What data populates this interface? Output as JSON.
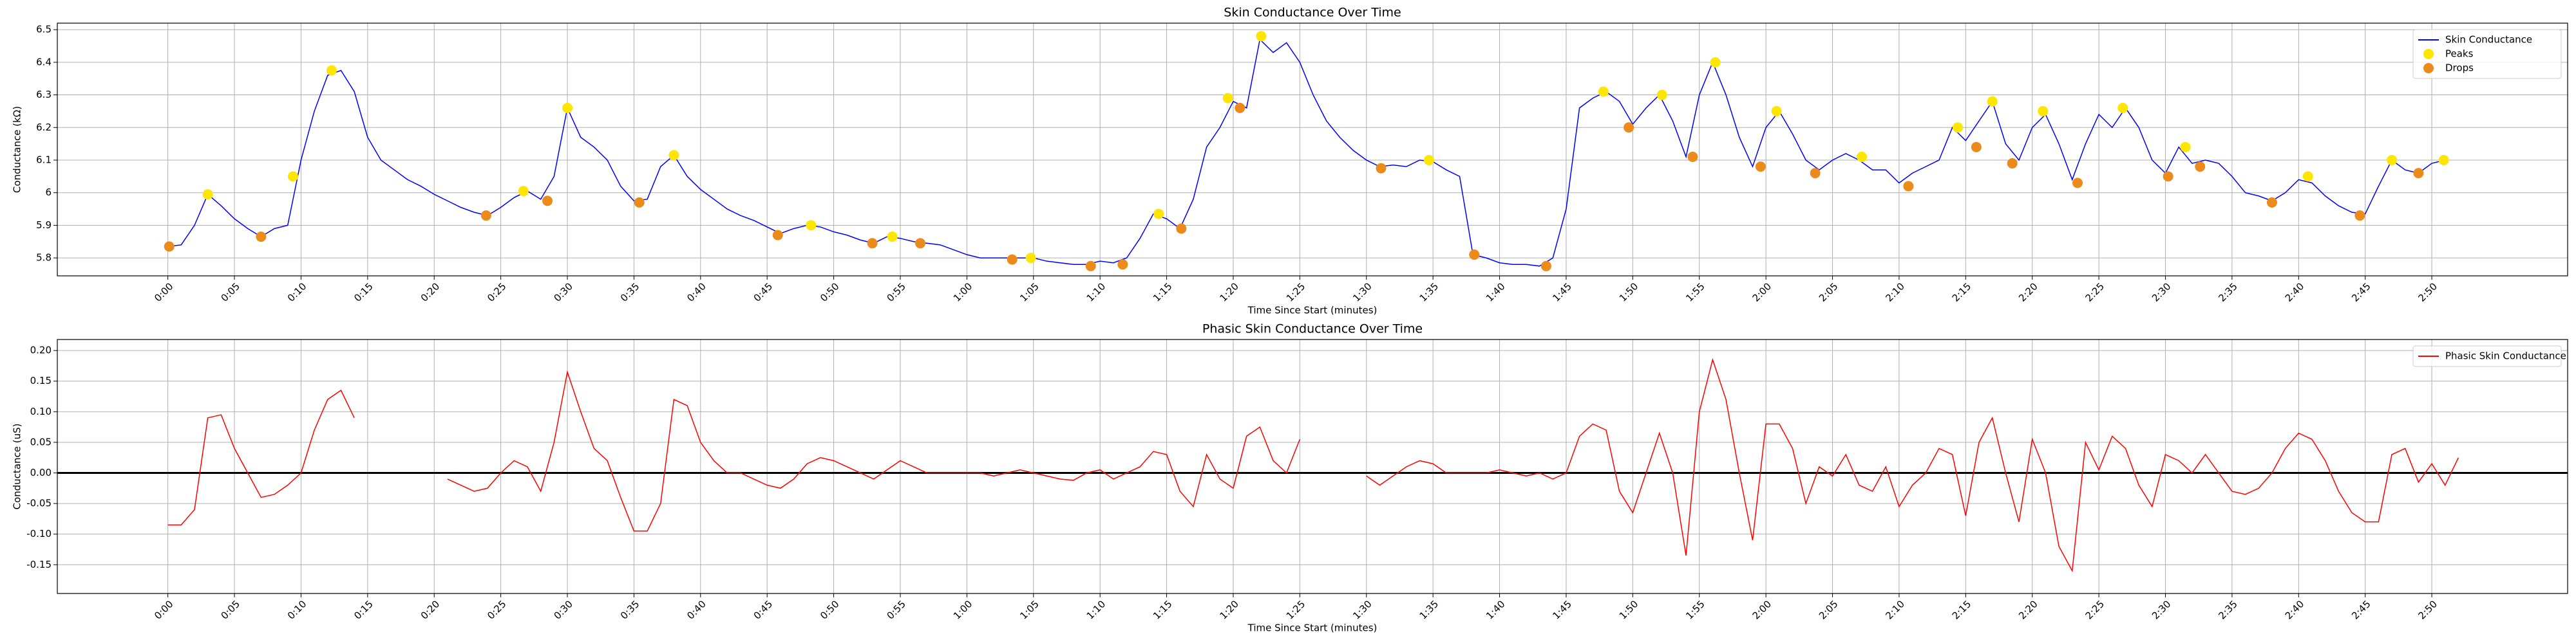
{
  "chart_data": [
    {
      "type": "line",
      "title": "Skin Conductance Over Time",
      "x_label": "Time Since Start (minutes)",
      "y_label": "Conductance (kΩ)",
      "x": [
        0,
        1,
        2,
        3,
        4,
        5,
        6,
        7,
        8,
        9,
        10,
        11,
        12,
        13,
        14,
        15,
        16,
        17,
        18,
        19,
        20,
        21,
        22,
        23,
        24,
        25,
        26,
        27,
        28,
        29,
        30,
        31,
        32,
        33,
        34,
        35,
        36,
        37,
        38,
        39,
        40,
        41,
        42,
        43,
        44,
        45,
        46,
        47,
        48,
        49,
        50,
        51,
        52,
        53,
        54,
        55,
        56,
        57,
        58,
        59,
        60,
        61,
        62,
        63,
        64,
        65,
        66,
        67,
        68,
        69,
        70,
        71,
        72,
        73,
        74,
        75,
        76,
        77,
        78,
        79,
        80,
        81,
        82,
        83,
        84,
        85,
        86,
        87,
        88,
        89,
        90,
        91,
        92,
        93,
        94,
        95,
        96,
        97,
        98,
        99,
        100,
        101,
        102,
        103,
        104,
        105,
        106,
        107,
        108,
        109,
        110,
        111,
        112,
        113,
        114,
        115,
        116,
        117,
        118,
        119,
        120,
        121,
        122,
        123,
        124,
        125,
        126,
        127,
        128,
        129,
        130,
        131,
        132,
        133,
        134,
        135,
        136,
        137,
        138,
        139,
        140,
        141,
        142,
        143,
        144,
        145,
        146,
        147,
        148,
        149,
        150,
        151,
        152,
        153,
        154,
        155,
        156,
        157,
        158,
        159,
        160,
        161,
        162,
        163,
        164,
        165,
        166,
        167,
        168,
        169,
        170,
        171
      ],
      "series": [
        {
          "name": "Skin Conductance",
          "type": "line",
          "color": "#0000ff",
          "values": [
            5.835,
            5.84,
            5.9,
            5.995,
            5.96,
            5.92,
            5.89,
            5.865,
            5.89,
            5.9,
            6.1,
            6.25,
            6.36,
            6.375,
            6.31,
            6.17,
            6.1,
            6.07,
            6.04,
            6.02,
            5.995,
            5.975,
            5.955,
            5.94,
            5.93,
            5.955,
            5.985,
            6.005,
            5.98,
            6.05,
            6.26,
            6.17,
            6.14,
            6.1,
            6.02,
            5.975,
            5.98,
            6.08,
            6.115,
            6.05,
            6.01,
            5.98,
            5.95,
            5.93,
            5.915,
            5.895,
            5.875,
            5.89,
            5.9,
            5.895,
            5.88,
            5.87,
            5.855,
            5.845,
            5.865,
            5.86,
            5.85,
            5.845,
            5.84,
            5.825,
            5.81,
            5.8,
            5.8,
            5.8,
            5.8,
            5.8,
            5.79,
            5.785,
            5.78,
            5.78,
            5.79,
            5.785,
            5.8,
            5.86,
            5.935,
            5.92,
            5.89,
            5.98,
            6.14,
            6.2,
            6.28,
            6.26,
            6.47,
            6.43,
            6.46,
            6.4,
            6.3,
            6.22,
            6.17,
            6.13,
            6.1,
            6.08,
            6.085,
            6.08,
            6.1,
            6.095,
            6.07,
            6.05,
            5.81,
            5.8,
            5.785,
            5.78,
            5.78,
            5.775,
            5.8,
            5.95,
            6.26,
            6.29,
            6.31,
            6.28,
            6.21,
            6.26,
            6.3,
            6.22,
            6.11,
            6.3,
            6.4,
            6.3,
            6.17,
            6.08,
            6.2,
            6.25,
            6.18,
            6.1,
            6.07,
            6.1,
            6.12,
            6.1,
            6.07,
            6.07,
            6.03,
            6.06,
            6.08,
            6.1,
            6.2,
            6.16,
            6.22,
            6.28,
            6.15,
            6.1,
            6.2,
            6.24,
            6.15,
            6.04,
            6.15,
            6.24,
            6.2,
            6.26,
            6.2,
            6.1,
            6.06,
            6.14,
            6.09,
            6.1,
            6.09,
            6.05,
            6.0,
            5.99,
            5.975,
            6.0,
            6.04,
            6.03,
            5.99,
            5.96,
            5.94,
            5.935,
            6.02,
            6.1,
            6.07,
            6.06,
            6.09,
            6.1
          ]
        },
        {
          "name": "Peaks",
          "type": "scatter",
          "color": "#ffe600",
          "x": [
            3,
            9.4,
            12.3,
            26.7,
            30,
            38,
            48.3,
            54.4,
            64.8,
            74.4,
            79.6,
            82.1,
            94.7,
            107.8,
            112.2,
            116.2,
            120.8,
            127.2,
            134.4,
            137,
            140.8,
            146.8,
            151.5,
            160.7,
            167,
            170.9
          ],
          "values": [
            5.995,
            6.05,
            6.375,
            6.005,
            6.26,
            6.115,
            5.9,
            5.865,
            5.8,
            5.935,
            6.29,
            6.48,
            6.1,
            6.31,
            6.3,
            6.4,
            6.25,
            6.11,
            6.2,
            6.28,
            6.25,
            6.26,
            6.14,
            6.05,
            6.1,
            6.1
          ]
        },
        {
          "name": "Drops",
          "type": "scatter",
          "color": "#ec8a1c",
          "x": [
            0.1,
            7,
            23.9,
            28.5,
            35.4,
            45.8,
            52.9,
            56.5,
            63.4,
            69.3,
            71.7,
            76.1,
            80.5,
            91.1,
            98.1,
            103.5,
            109.7,
            114.5,
            119.6,
            123.7,
            130.7,
            135.8,
            138.5,
            143.4,
            150.2,
            152.6,
            158,
            164.6,
            169
          ],
          "values": [
            5.835,
            5.865,
            5.93,
            5.975,
            5.97,
            5.87,
            5.845,
            5.845,
            5.795,
            5.775,
            5.78,
            5.89,
            6.26,
            6.075,
            5.81,
            5.775,
            6.2,
            6.11,
            6.08,
            6.06,
            6.02,
            6.14,
            6.09,
            6.03,
            6.05,
            6.08,
            5.97,
            5.93,
            6.06
          ]
        }
      ],
      "xlim": [
        -8.3,
        180.2
      ],
      "xticks": [
        {
          "value": 0,
          "label": "0:00"
        },
        {
          "value": 5,
          "label": "0:05"
        },
        {
          "value": 10,
          "label": "0:10"
        },
        {
          "value": 15,
          "label": "0:15"
        },
        {
          "value": 20,
          "label": "0:20"
        },
        {
          "value": 25,
          "label": "0:25"
        },
        {
          "value": 30,
          "label": "0:30"
        },
        {
          "value": 35,
          "label": "0:35"
        },
        {
          "value": 40,
          "label": "0:40"
        },
        {
          "value": 45,
          "label": "0:45"
        },
        {
          "value": 50,
          "label": "0:50"
        },
        {
          "value": 55,
          "label": "0:55"
        },
        {
          "value": 60,
          "label": "1:00"
        },
        {
          "value": 65,
          "label": "1:05"
        },
        {
          "value": 70,
          "label": "1:10"
        },
        {
          "value": 75,
          "label": "1:15"
        },
        {
          "value": 80,
          "label": "1:20"
        },
        {
          "value": 85,
          "label": "1:25"
        },
        {
          "value": 90,
          "label": "1:30"
        },
        {
          "value": 95,
          "label": "1:35"
        },
        {
          "value": 100,
          "label": "1:40"
        },
        {
          "value": 105,
          "label": "1:45"
        },
        {
          "value": 110,
          "label": "1:50"
        },
        {
          "value": 115,
          "label": "1:55"
        },
        {
          "value": 120,
          "label": "2:00"
        },
        {
          "value": 125,
          "label": "2:05"
        },
        {
          "value": 130,
          "label": "2:10"
        },
        {
          "value": 135,
          "label": "2:15"
        },
        {
          "value": 140,
          "label": "2:20"
        },
        {
          "value": 145,
          "label": "2:25"
        },
        {
          "value": 150,
          "label": "2:30"
        },
        {
          "value": 155,
          "label": "2:35"
        },
        {
          "value": 160,
          "label": "2:40"
        },
        {
          "value": 165,
          "label": "2:45"
        },
        {
          "value": 170,
          "label": "2:50"
        }
      ],
      "ylim": [
        5.745,
        6.52
      ],
      "yticks": [
        5.8,
        5.9,
        6.0,
        6.1,
        6.2,
        6.3,
        6.4,
        6.5
      ],
      "grid": true,
      "legend": "upper right"
    },
    {
      "type": "line",
      "title": "Phasic Skin Conductance Over Time",
      "x_label": "Time Since Start (minutes)",
      "y_label": "Conductance (uS)",
      "x": [
        0,
        1,
        2,
        3,
        4,
        5,
        6,
        7,
        8,
        9,
        10,
        11,
        12,
        13,
        14,
        15,
        16,
        17,
        18,
        19,
        20,
        21,
        22,
        23,
        24,
        25,
        26,
        27,
        28,
        29,
        30,
        31,
        32,
        33,
        34,
        35,
        36,
        37,
        38,
        39,
        40,
        41,
        42,
        43,
        44,
        45,
        46,
        47,
        48,
        49,
        50,
        51,
        52,
        53,
        54,
        55,
        56,
        57,
        58,
        59,
        60,
        61,
        62,
        63,
        64,
        65,
        66,
        67,
        68,
        69,
        70,
        71,
        72,
        73,
        74,
        75,
        76,
        77,
        78,
        79,
        80,
        81,
        82,
        83,
        84,
        85,
        86,
        87,
        88,
        89,
        90,
        91,
        92,
        93,
        94,
        95,
        96,
        97,
        98,
        99,
        100,
        101,
        102,
        103,
        104,
        105,
        106,
        107,
        108,
        109,
        110,
        111,
        112,
        113,
        114,
        115,
        116,
        117,
        118,
        119,
        120,
        121,
        122,
        123,
        124,
        125,
        126,
        127,
        128,
        129,
        130,
        131,
        132,
        133,
        134,
        135,
        136,
        137,
        138,
        139,
        140,
        141,
        142,
        143,
        144,
        145,
        146,
        147,
        148,
        149,
        150,
        151,
        152,
        153,
        154,
        155,
        156,
        157,
        158,
        159,
        160,
        161,
        162,
        163,
        164,
        165,
        166,
        167,
        168,
        169,
        170,
        171,
        172
      ],
      "series": [
        {
          "name": "Phasic Skin Conductance",
          "type": "line",
          "color": "#ff0000",
          "values": [
            -0.085,
            -0.085,
            -0.06,
            0.09,
            0.095,
            0.04,
            0.0,
            -0.04,
            -0.035,
            -0.02,
            0.0,
            0.07,
            0.12,
            0.135,
            0.09,
            null,
            null,
            null,
            null,
            null,
            null,
            -0.01,
            -0.02,
            -0.03,
            -0.025,
            0.0,
            0.02,
            0.01,
            -0.03,
            0.05,
            0.165,
            0.1,
            0.04,
            0.02,
            -0.04,
            -0.095,
            -0.095,
            -0.05,
            0.12,
            0.11,
            0.05,
            0.02,
            0.0,
            0.0,
            -0.01,
            -0.02,
            -0.025,
            -0.01,
            0.015,
            0.025,
            0.02,
            0.01,
            0.0,
            -0.01,
            0.005,
            0.02,
            0.01,
            0.0,
            0.0,
            0.0,
            0.0,
            0.0,
            -0.005,
            0.0,
            0.005,
            0.0,
            -0.005,
            -0.01,
            -0.012,
            0.0,
            0.005,
            -0.01,
            0.0,
            0.01,
            0.035,
            0.03,
            -0.03,
            -0.055,
            0.03,
            -0.01,
            -0.025,
            0.06,
            0.075,
            0.02,
            0.0,
            0.055,
            null,
            null,
            null,
            null,
            -0.005,
            -0.02,
            -0.005,
            0.01,
            0.02,
            0.015,
            0.0,
            0.0,
            0.0,
            0.0,
            0.005,
            0.0,
            -0.005,
            0.0,
            -0.01,
            0.0,
            0.06,
            0.08,
            0.07,
            -0.03,
            -0.065,
            0.0,
            0.065,
            0.0,
            -0.135,
            0.1,
            0.185,
            0.12,
            0.0,
            -0.11,
            0.08,
            0.08,
            0.04,
            -0.05,
            0.01,
            -0.005,
            0.03,
            -0.02,
            -0.03,
            0.01,
            -0.055,
            -0.02,
            0.0,
            0.04,
            0.03,
            -0.07,
            0.05,
            0.09,
            0.0,
            -0.08,
            0.055,
            0.0,
            -0.12,
            -0.16,
            0.05,
            0.005,
            0.06,
            0.04,
            -0.02,
            -0.055,
            0.03,
            0.02,
            0.0,
            0.03,
            0.0,
            -0.03,
            -0.035,
            -0.025,
            0.0,
            0.04,
            0.065,
            0.055,
            0.02,
            -0.03,
            -0.065,
            -0.08,
            -0.08,
            0.03,
            0.04,
            -0.015,
            0.015,
            -0.02,
            0.025
          ]
        }
      ],
      "hline": 0,
      "xlim": [
        -8.3,
        180.2
      ],
      "xticks": [
        {
          "value": 0,
          "label": "0:00"
        },
        {
          "value": 5,
          "label": "0:05"
        },
        {
          "value": 10,
          "label": "0:10"
        },
        {
          "value": 15,
          "label": "0:15"
        },
        {
          "value": 20,
          "label": "0:20"
        },
        {
          "value": 25,
          "label": "0:25"
        },
        {
          "value": 30,
          "label": "0:30"
        },
        {
          "value": 35,
          "label": "0:35"
        },
        {
          "value": 40,
          "label": "0:40"
        },
        {
          "value": 45,
          "label": "0:45"
        },
        {
          "value": 50,
          "label": "0:50"
        },
        {
          "value": 55,
          "label": "0:55"
        },
        {
          "value": 60,
          "label": "1:00"
        },
        {
          "value": 65,
          "label": "1:05"
        },
        {
          "value": 70,
          "label": "1:10"
        },
        {
          "value": 75,
          "label": "1:15"
        },
        {
          "value": 80,
          "label": "1:20"
        },
        {
          "value": 85,
          "label": "1:25"
        },
        {
          "value": 90,
          "label": "1:30"
        },
        {
          "value": 95,
          "label": "1:35"
        },
        {
          "value": 100,
          "label": "1:40"
        },
        {
          "value": 105,
          "label": "1:45"
        },
        {
          "value": 110,
          "label": "1:50"
        },
        {
          "value": 115,
          "label": "1:55"
        },
        {
          "value": 120,
          "label": "2:00"
        },
        {
          "value": 125,
          "label": "2:05"
        },
        {
          "value": 130,
          "label": "2:10"
        },
        {
          "value": 135,
          "label": "2:15"
        },
        {
          "value": 140,
          "label": "2:20"
        },
        {
          "value": 145,
          "label": "2:25"
        },
        {
          "value": 150,
          "label": "2:30"
        },
        {
          "value": 155,
          "label": "2:35"
        },
        {
          "value": 160,
          "label": "2:40"
        },
        {
          "value": 165,
          "label": "2:45"
        },
        {
          "value": 170,
          "label": "2:50"
        }
      ],
      "ylim": [
        -0.197,
        0.218
      ],
      "yticks": [
        {
          "value": -0.15,
          "label": "-0.15"
        },
        {
          "value": -0.1,
          "label": "-0.10"
        },
        {
          "value": -0.05,
          "label": "-0.05"
        },
        {
          "value": 0,
          "label": "0.00"
        },
        {
          "value": 0.05,
          "label": "0.05"
        },
        {
          "value": 0.1,
          "label": "0.10"
        },
        {
          "value": 0.15,
          "label": "0.15"
        },
        {
          "value": 0.2,
          "label": "0.20"
        }
      ],
      "grid": true,
      "legend": "upper right"
    }
  ]
}
